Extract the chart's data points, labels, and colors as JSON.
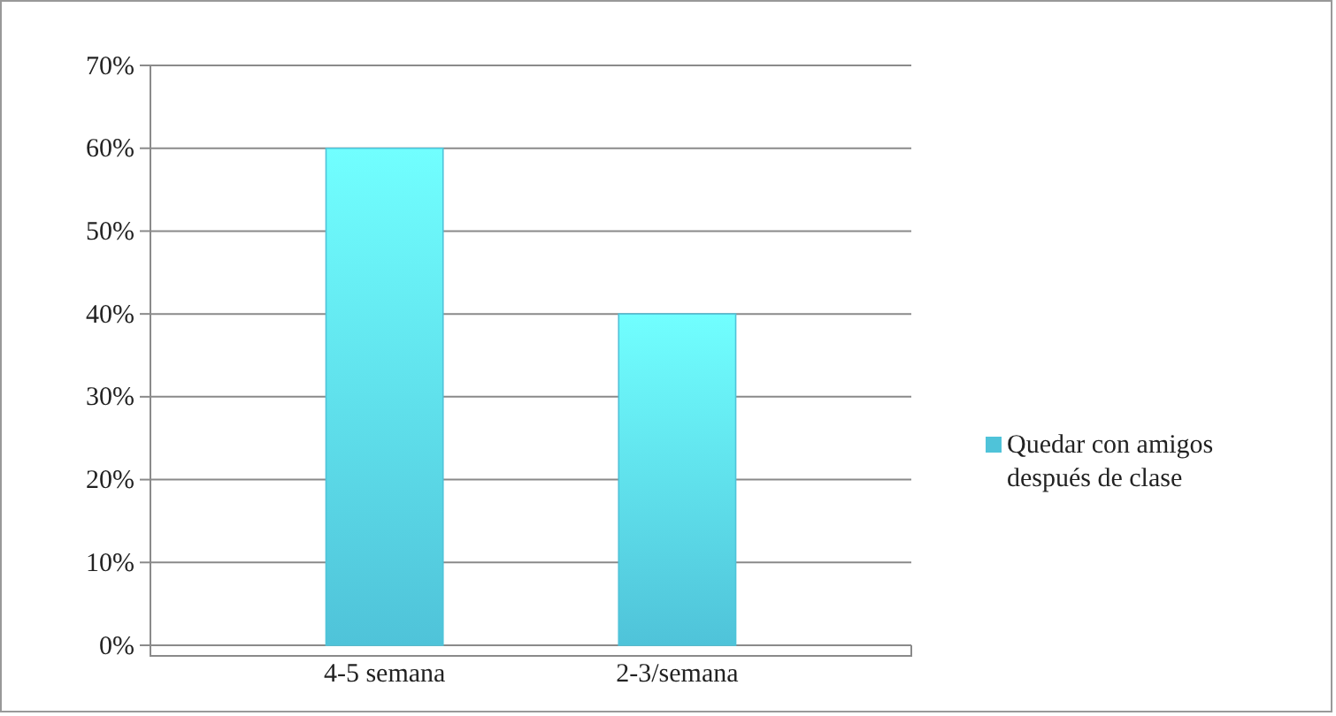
{
  "chart_data": {
    "type": "bar",
    "categories": [
      "4-5 semana",
      "2-3/semana"
    ],
    "series": [
      {
        "name": "Quedar con amigos después de clase",
        "color": "#4fc3d9",
        "values": [
          60,
          40
        ]
      }
    ],
    "ylim": [
      0,
      70
    ],
    "yticks": [
      {
        "value": 0,
        "label": "0%"
      },
      {
        "value": 10,
        "label": "10%"
      },
      {
        "value": 20,
        "label": "20%"
      },
      {
        "value": 30,
        "label": "30%"
      },
      {
        "value": 40,
        "label": "40%"
      },
      {
        "value": 50,
        "label": "50%"
      },
      {
        "value": 60,
        "label": "60%"
      },
      {
        "value": 70,
        "label": "70%"
      }
    ],
    "grid": "y",
    "legend": "right"
  }
}
